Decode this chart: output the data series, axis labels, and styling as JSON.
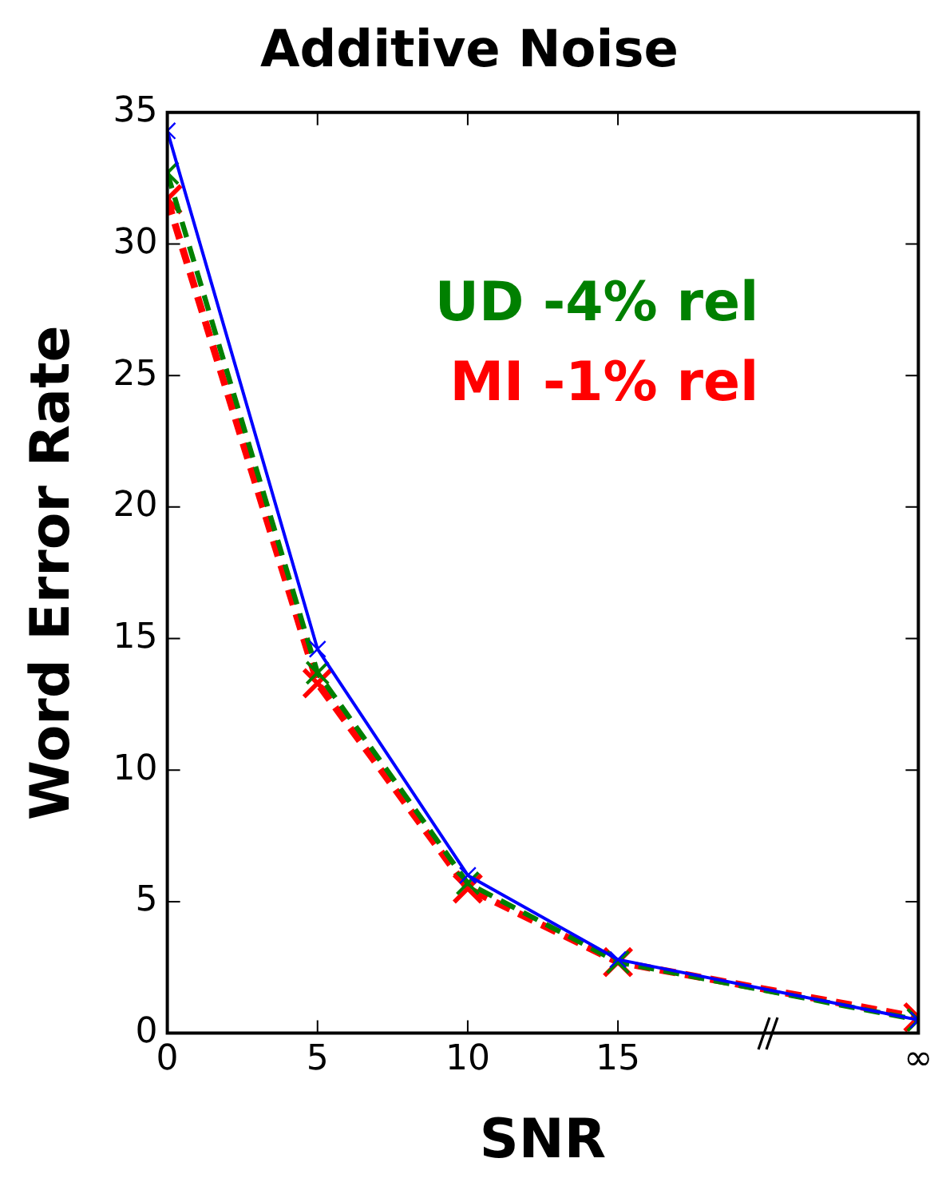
{
  "chart_data": {
    "type": "line",
    "title": "Additive Noise",
    "xlabel": "SNR",
    "ylabel": "Word Error Rate",
    "x": [
      0,
      5,
      10,
      15,
      25
    ],
    "xlim": [
      0,
      25
    ],
    "xticks": [
      0,
      5,
      10,
      15,
      {
        "value": 25,
        "label": "∞"
      }
    ],
    "ylim": [
      0,
      35
    ],
    "yticks": [
      0,
      5,
      10,
      15,
      20,
      25,
      30,
      35
    ],
    "grid": false,
    "legend": "right",
    "marker": "cross",
    "series": [
      {
        "color": "#0000ff",
        "line_style": "solid",
        "values": [
          34.3,
          14.6,
          6.0,
          2.8,
          0.5
        ]
      },
      {
        "name": "UD -4% rel",
        "color": "#008000",
        "line_style": "dashed",
        "values": [
          32.7,
          13.7,
          5.7,
          2.7,
          0.5
        ]
      },
      {
        "name": "MI -1% rel",
        "color": "#ff0000",
        "line_style": "dashed",
        "values": [
          31.7,
          13.3,
          5.5,
          2.7,
          0.6
        ]
      }
    ]
  }
}
